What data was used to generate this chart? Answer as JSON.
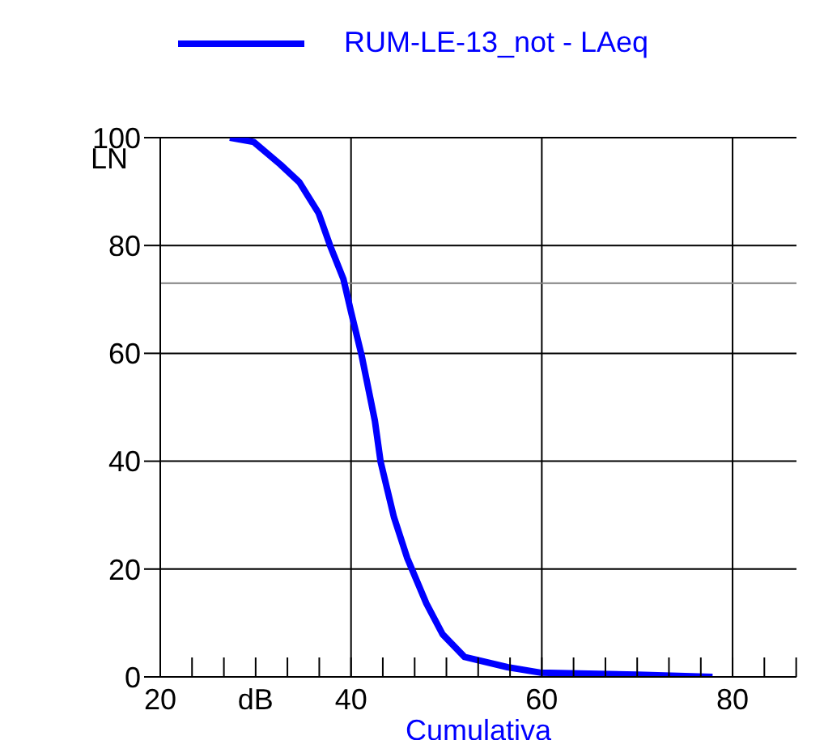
{
  "chart_data": {
    "type": "line",
    "xlabel": "Cumulativa",
    "ylabel": "LN",
    "x": [
      27.3,
      29.8,
      32.6,
      34.6,
      36.6,
      37.8,
      39.2,
      40.0,
      41.1,
      42.5,
      43.1,
      44.5,
      45.9,
      47.9,
      49.6,
      51.9,
      56.4,
      59.8,
      70,
      77.9
    ],
    "series": [
      {
        "name": "RUM-LE-13_not - LAeq",
        "color": "#0000ff",
        "values": [
          100,
          99.2,
          95,
          91.7,
          86,
          80,
          73.8,
          67.7,
          59.7,
          47.5,
          39.9,
          29.6,
          22,
          13.6,
          7.9,
          3.7,
          1.8,
          0.8,
          0.4,
          0
        ]
      }
    ],
    "xlim": [
      20,
      86.7
    ],
    "xticks": [
      20,
      {
        "value": 23.33,
        "label": null
      },
      {
        "value": 26.67,
        "label": null
      },
      {
        "value": 30,
        "label": "dB"
      },
      {
        "value": 33.33,
        "label": null
      },
      {
        "value": 36.67,
        "label": null
      },
      40,
      {
        "value": 43.33,
        "label": null
      },
      {
        "value": 46.67,
        "label": null
      },
      {
        "value": 50,
        "label": null
      },
      {
        "value": 53.33,
        "label": null
      },
      {
        "value": 56.67,
        "label": null
      },
      60,
      {
        "value": 63.33,
        "label": null
      },
      {
        "value": 66.67,
        "label": null
      },
      {
        "value": 70,
        "label": null
      },
      {
        "value": 73.33,
        "label": null
      },
      {
        "value": 76.67,
        "label": null
      },
      80,
      {
        "value": 83.33,
        "label": null
      },
      {
        "value": 86.67,
        "label": null
      }
    ],
    "ylim": [
      0,
      100
    ],
    "yticks": [
      0,
      20,
      40,
      60,
      80,
      100
    ],
    "ref_lines": [
      {
        "axis": "y",
        "value": 73,
        "label": null,
        "color": "#808080"
      }
    ],
    "grid": true,
    "legend": "top",
    "marker": "none",
    "line_style": "solid"
  }
}
